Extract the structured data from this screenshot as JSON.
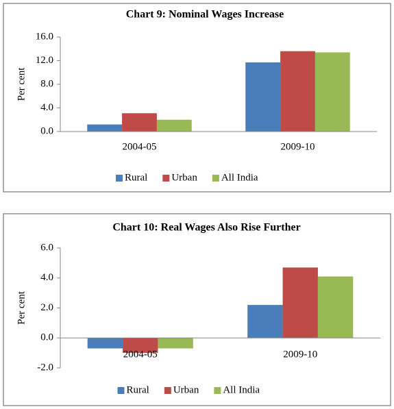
{
  "chart_data": [
    {
      "type": "bar",
      "title": "Chart 9: Nominal Wages Increase",
      "y_label": "Per cent",
      "categories": [
        "2004-05",
        "2009-10"
      ],
      "series": [
        {
          "name": "Rural",
          "color": "#4a7ebb",
          "values": [
            1.2,
            11.7
          ]
        },
        {
          "name": "Urban",
          "color": "#be4b48",
          "values": [
            3.1,
            13.6
          ]
        },
        {
          "name": "All India",
          "color": "#98b954",
          "values": [
            2.0,
            13.4
          ]
        }
      ],
      "ylim": [
        0,
        16
      ],
      "yticks": [
        {
          "value": 0,
          "label": "0.0"
        },
        {
          "value": 4,
          "label": "4.0"
        },
        {
          "value": 8,
          "label": "8.0"
        },
        {
          "value": 12,
          "label": "12.0"
        },
        {
          "value": 16,
          "label": "16.0"
        }
      ]
    },
    {
      "type": "bar",
      "title": "Chart 10: Real Wages Also Rise Further",
      "y_label": "Per cent",
      "categories": [
        "2004-05",
        "2009-10"
      ],
      "series": [
        {
          "name": "Rural",
          "color": "#4a7ebb",
          "values": [
            -0.7,
            2.2
          ]
        },
        {
          "name": "Urban",
          "color": "#be4b48",
          "values": [
            -1.0,
            4.7
          ]
        },
        {
          "name": "All India",
          "color": "#98b954",
          "values": [
            -0.7,
            4.1
          ]
        }
      ],
      "ylim": [
        -2,
        6
      ],
      "yticks": [
        {
          "value": -2,
          "label": "-2.0"
        },
        {
          "value": 0,
          "label": "0.0"
        },
        {
          "value": 2,
          "label": "2.0"
        },
        {
          "value": 4,
          "label": "4.0"
        },
        {
          "value": 6,
          "label": "6.0"
        }
      ]
    }
  ]
}
